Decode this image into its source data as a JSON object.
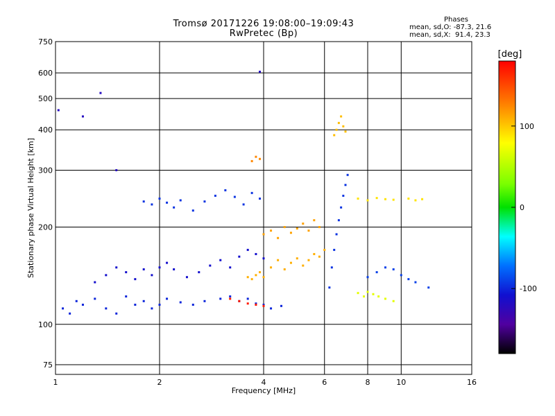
{
  "chart_data": {
    "type": "scatter",
    "title": "Tromsø 20171226 19:08:00–19:09:43",
    "subtitle": "RwPretec (Bp)",
    "xlabel": "Frequency [MHz]",
    "ylabel": "Stationary phase Virtual Height [km]",
    "x_scale": "log",
    "y_scale": "log",
    "xlim": [
      1,
      16
    ],
    "ylim": [
      70,
      750
    ],
    "x_ticks": [
      1,
      2,
      4,
      6,
      8,
      10,
      16
    ],
    "y_ticks": [
      75,
      100,
      200,
      300,
      400,
      500,
      600,
      750
    ],
    "grid": true,
    "colorbar": {
      "label": "[deg]",
      "range": [
        -180,
        180
      ],
      "ticks": [
        100,
        0,
        -100
      ]
    },
    "stats": {
      "heading": "Phases",
      "o_line": "mean, sd,O: -87.3, 21.6",
      "x_line": "mean, sd,X:  91.4, 23.3"
    },
    "series": [
      {
        "x": [
          1.05,
          1.1,
          1.15,
          1.2,
          1.3,
          1.4,
          1.5,
          1.6,
          1.7,
          1.8,
          1.9,
          2.0,
          2.1,
          2.3,
          2.5,
          2.7,
          3.0,
          3.2,
          3.4,
          3.6,
          3.8,
          4.0,
          4.2,
          4.5
        ],
        "y": [
          112,
          108,
          118,
          115,
          120,
          112,
          108,
          122,
          115,
          118,
          112,
          115,
          120,
          117,
          115,
          118,
          120,
          122,
          118,
          120,
          116,
          115,
          112,
          114
        ],
        "phase": -100
      },
      {
        "x": [
          1.3,
          1.4,
          1.5,
          1.6,
          1.7,
          1.8,
          1.9,
          2.0,
          2.1,
          2.2,
          2.4,
          2.6,
          2.8,
          3.0,
          3.2,
          3.4,
          3.6,
          3.8,
          4.0
        ],
        "y": [
          135,
          142,
          150,
          145,
          138,
          148,
          142,
          150,
          155,
          148,
          140,
          145,
          152,
          158,
          150,
          162,
          170,
          165,
          160
        ],
        "phase": -110
      },
      {
        "x": [
          1.8,
          1.9,
          2.0,
          2.1,
          2.2,
          2.3,
          2.5,
          2.7,
          2.9,
          3.1,
          3.3,
          3.5,
          3.7,
          3.9
        ],
        "y": [
          240,
          235,
          245,
          238,
          230,
          242,
          225,
          240,
          250,
          260,
          248,
          235,
          255,
          245
        ],
        "phase": -95
      },
      {
        "x": [
          3.6,
          3.7,
          3.8,
          3.9,
          4.0,
          4.2,
          4.4,
          4.6,
          4.8,
          5.0,
          5.2,
          5.4,
          5.6,
          5.8,
          6.0
        ],
        "y": [
          140,
          138,
          142,
          145,
          140,
          150,
          158,
          148,
          155,
          160,
          152,
          158,
          165,
          162,
          170
        ],
        "phase": 110
      },
      {
        "x": [
          4.0,
          4.2,
          4.4,
          4.6,
          4.8,
          5.0,
          5.2,
          5.4,
          5.6,
          5.8
        ],
        "y": [
          190,
          195,
          185,
          200,
          192,
          198,
          205,
          195,
          210,
          200
        ],
        "phase": 115
      },
      {
        "x": [
          3.7,
          3.8,
          3.9
        ],
        "y": [
          320,
          330,
          325
        ],
        "phase": 125
      },
      {
        "x": [
          6.4,
          6.5,
          6.6,
          6.7,
          6.8,
          6.9
        ],
        "y": [
          385,
          400,
          420,
          440,
          410,
          395
        ],
        "phase": 105
      },
      {
        "x": [
          6.2,
          6.3,
          6.4,
          6.5,
          6.6,
          6.7,
          6.8,
          6.9,
          7.0
        ],
        "y": [
          130,
          150,
          170,
          190,
          210,
          230,
          250,
          270,
          290
        ],
        "phase": -95
      },
      {
        "x": [
          7.5,
          7.8,
          8.0,
          8.3,
          8.6,
          9.0,
          9.5
        ],
        "y": [
          125,
          122,
          126,
          124,
          122,
          120,
          118
        ],
        "phase": 70
      },
      {
        "x": [
          7.5,
          8.0,
          8.5,
          9.0,
          9.5,
          10.5,
          11.0,
          11.5
        ],
        "y": [
          245,
          242,
          246,
          244,
          243,
          245,
          242,
          244
        ],
        "phase": 90
      },
      {
        "x": [
          8.0,
          8.5,
          9.0,
          9.5,
          10.0,
          10.5,
          11.0,
          12.0
        ],
        "y": [
          140,
          145,
          150,
          148,
          142,
          138,
          135,
          130
        ],
        "phase": -90
      },
      {
        "x": [
          3.2,
          3.4,
          3.6,
          3.8,
          4.0
        ],
        "y": [
          120,
          118,
          116,
          115,
          114
        ],
        "phase": 170
      },
      {
        "x": [
          1.02,
          1.2,
          1.35,
          1.5,
          3.9
        ],
        "y": [
          460,
          440,
          520,
          300,
          605
        ],
        "phase": -120
      }
    ]
  }
}
